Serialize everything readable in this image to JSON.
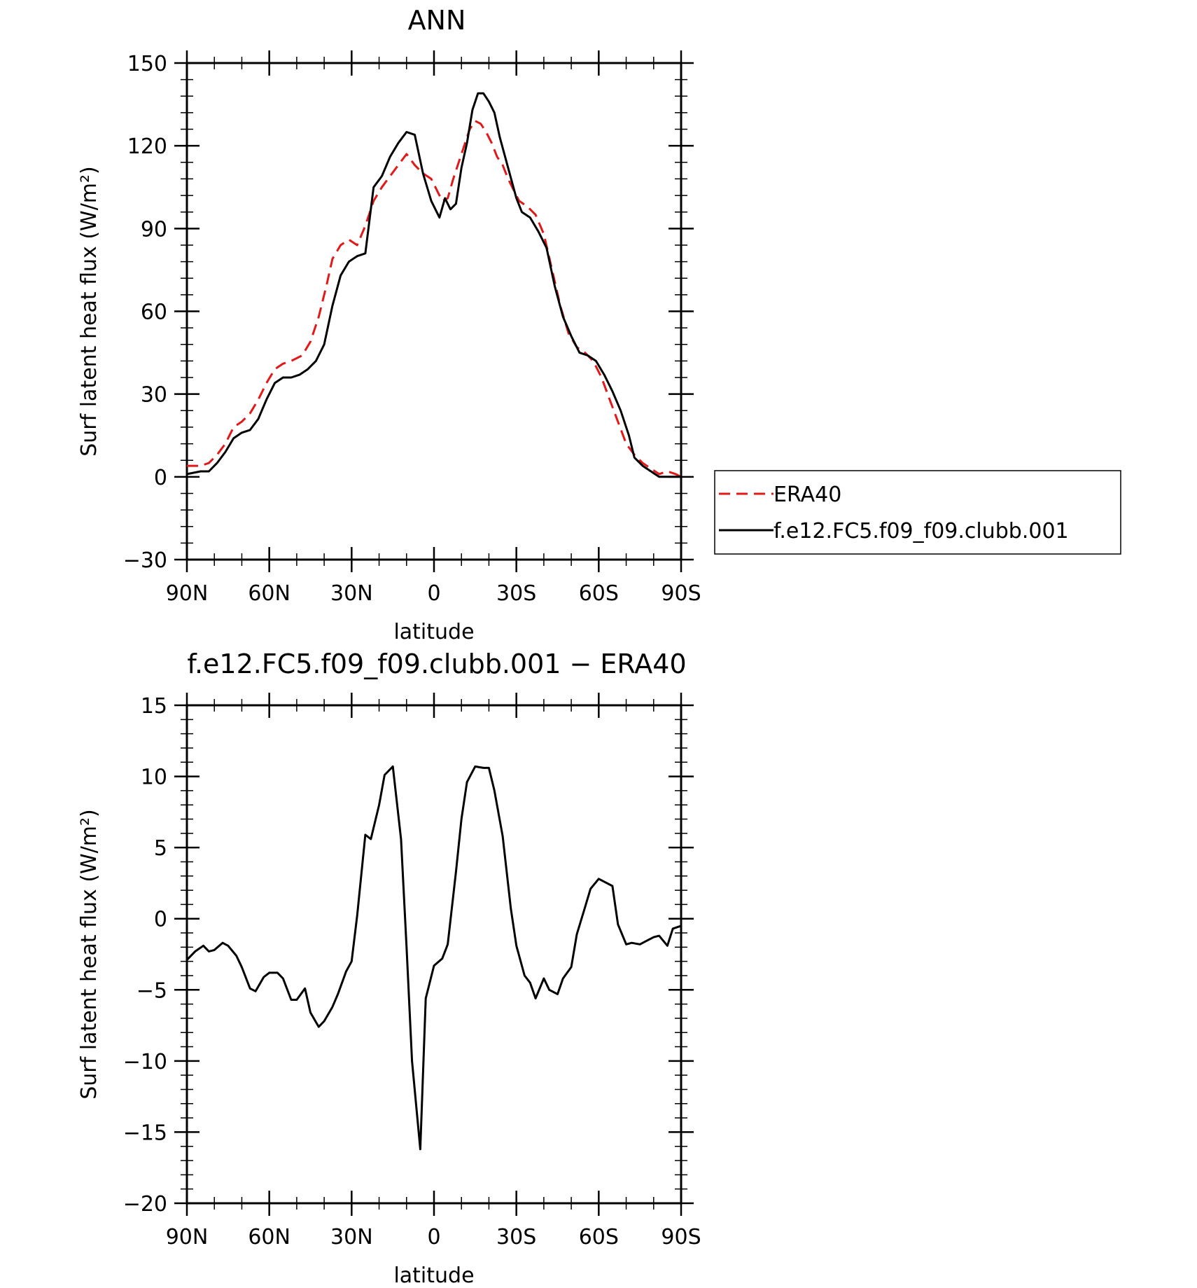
{
  "chart_data": [
    {
      "type": "line",
      "title": "ANN",
      "xlabel": "latitude",
      "ylabel": "Surf latent heat flux (W/m²)",
      "ylim": [
        -30,
        150
      ],
      "yticks": [
        -30,
        0,
        30,
        60,
        90,
        120,
        150
      ],
      "xlim": [
        90,
        -90
      ],
      "xticks": [
        {
          "value": 90,
          "label": "90N"
        },
        {
          "value": 60,
          "label": "60N"
        },
        {
          "value": 30,
          "label": "30N"
        },
        {
          "value": 0,
          "label": "0"
        },
        {
          "value": -30,
          "label": "30S"
        },
        {
          "value": -60,
          "label": "60S"
        },
        {
          "value": -90,
          "label": "90S"
        }
      ],
      "legend_position": "right",
      "series": [
        {
          "name": "ERA40",
          "color": "#e11919",
          "dash": "dashed",
          "points": [
            [
              90,
              4
            ],
            [
              85,
              4
            ],
            [
              82,
              5
            ],
            [
              79,
              8
            ],
            [
              76,
              12
            ],
            [
              73,
              18
            ],
            [
              70,
              20
            ],
            [
              67,
              23
            ],
            [
              64,
              28
            ],
            [
              61,
              34
            ],
            [
              58,
              39
            ],
            [
              55,
              41
            ],
            [
              52,
              42
            ],
            [
              48,
              44
            ],
            [
              45,
              49
            ],
            [
              42,
              58
            ],
            [
              39,
              70
            ],
            [
              37,
              79
            ],
            [
              34,
              84
            ],
            [
              31,
              86
            ],
            [
              28,
              84
            ],
            [
              25,
              91
            ],
            [
              22,
              100
            ],
            [
              19,
              105
            ],
            [
              16,
              109
            ],
            [
              13,
              113
            ],
            [
              10,
              117
            ],
            [
              7,
              113
            ],
            [
              4,
              110
            ],
            [
              1,
              108
            ],
            [
              -1,
              104
            ],
            [
              -3,
              100
            ],
            [
              -5,
              101
            ],
            [
              -7,
              108
            ],
            [
              -9,
              114
            ],
            [
              -11,
              120
            ],
            [
              -13,
              126
            ],
            [
              -15,
              129
            ],
            [
              -17,
              128
            ],
            [
              -19,
              125
            ],
            [
              -21,
              121
            ],
            [
              -23,
              116
            ],
            [
              -25,
              113
            ],
            [
              -27,
              108
            ],
            [
              -29,
              104
            ],
            [
              -31,
              100
            ],
            [
              -34,
              98
            ],
            [
              -37,
              95
            ],
            [
              -40,
              88
            ],
            [
              -43,
              75
            ],
            [
              -46,
              62
            ],
            [
              -49,
              52
            ],
            [
              -52,
              47
            ],
            [
              -55,
              45
            ],
            [
              -58,
              42
            ],
            [
              -61,
              36
            ],
            [
              -64,
              28
            ],
            [
              -67,
              20
            ],
            [
              -70,
              12
            ],
            [
              -73,
              8
            ],
            [
              -76,
              5
            ],
            [
              -79,
              3
            ],
            [
              -82,
              1
            ],
            [
              -85,
              2
            ],
            [
              -88,
              1
            ],
            [
              -90,
              0
            ]
          ]
        },
        {
          "name": "f.e12.FC5.f09_f09.clubb.001",
          "color": "#000000",
          "dash": "solid",
          "points": [
            [
              90,
              1
            ],
            [
              85,
              2
            ],
            [
              82,
              2
            ],
            [
              79,
              5
            ],
            [
              76,
              9
            ],
            [
              73,
              14
            ],
            [
              70,
              16
            ],
            [
              67,
              17
            ],
            [
              64,
              21
            ],
            [
              61,
              28
            ],
            [
              58,
              34
            ],
            [
              55,
              36
            ],
            [
              52,
              36
            ],
            [
              49,
              37
            ],
            [
              46,
              39
            ],
            [
              43,
              42
            ],
            [
              40,
              48
            ],
            [
              37,
              62
            ],
            [
              34,
              73
            ],
            [
              31,
              78
            ],
            [
              28,
              80
            ],
            [
              25,
              81
            ],
            [
              22,
              105
            ],
            [
              19,
              109
            ],
            [
              16,
              116
            ],
            [
              13,
              121
            ],
            [
              10,
              125
            ],
            [
              7,
              124
            ],
            [
              4,
              110
            ],
            [
              1,
              100
            ],
            [
              -2,
              94
            ],
            [
              -4,
              101
            ],
            [
              -6,
              97
            ],
            [
              -8,
              99
            ],
            [
              -10,
              112
            ],
            [
              -12,
              121
            ],
            [
              -14,
              133
            ],
            [
              -16,
              139
            ],
            [
              -18,
              139
            ],
            [
              -20,
              136
            ],
            [
              -22,
              132
            ],
            [
              -24,
              123
            ],
            [
              -27,
              112
            ],
            [
              -30,
              101
            ],
            [
              -32,
              96
            ],
            [
              -35,
              94
            ],
            [
              -38,
              89
            ],
            [
              -41,
              83
            ],
            [
              -44,
              69
            ],
            [
              -47,
              58
            ],
            [
              -50,
              51
            ],
            [
              -53,
              45
            ],
            [
              -56,
              44
            ],
            [
              -59,
              42
            ],
            [
              -62,
              37
            ],
            [
              -65,
              31
            ],
            [
              -68,
              24
            ],
            [
              -71,
              15
            ],
            [
              -73,
              7
            ],
            [
              -76,
              4
            ],
            [
              -79,
              2
            ],
            [
              -82,
              0
            ],
            [
              -85,
              0
            ],
            [
              -90,
              0
            ]
          ]
        }
      ]
    },
    {
      "type": "line",
      "title": "f.e12.FC5.f09_f09.clubb.001 − ERA40",
      "xlabel": "latitude",
      "ylabel": "Surf latent heat flux (W/m²)",
      "ylim": [
        -20,
        15
      ],
      "yticks": [
        -20,
        -15,
        -10,
        -5,
        0,
        5,
        10,
        15
      ],
      "xlim": [
        90,
        -90
      ],
      "xticks": [
        {
          "value": 90,
          "label": "90N"
        },
        {
          "value": 60,
          "label": "60N"
        },
        {
          "value": 30,
          "label": "30N"
        },
        {
          "value": 0,
          "label": "0"
        },
        {
          "value": -30,
          "label": "30S"
        },
        {
          "value": -60,
          "label": "60S"
        },
        {
          "value": -90,
          "label": "90S"
        }
      ],
      "series": [
        {
          "color": "#000000",
          "dash": "solid",
          "points": [
            [
              90,
              -2.9
            ],
            [
              87,
              -2.3
            ],
            [
              84,
              -1.9
            ],
            [
              82,
              -2.3
            ],
            [
              80,
              -2.2
            ],
            [
              77,
              -1.7
            ],
            [
              75,
              -1.9
            ],
            [
              72,
              -2.6
            ],
            [
              70,
              -3.4
            ],
            [
              67,
              -4.9
            ],
            [
              65,
              -5.1
            ],
            [
              62,
              -4.1
            ],
            [
              60,
              -3.8
            ],
            [
              57,
              -3.8
            ],
            [
              55,
              -4.2
            ],
            [
              52,
              -5.7
            ],
            [
              50,
              -5.7
            ],
            [
              47,
              -4.9
            ],
            [
              45,
              -6.6
            ],
            [
              42,
              -7.6
            ],
            [
              40,
              -7.2
            ],
            [
              37,
              -6.2
            ],
            [
              35,
              -5.3
            ],
            [
              32,
              -3.7
            ],
            [
              30,
              -3.0
            ],
            [
              28,
              0.2
            ],
            [
              25,
              5.9
            ],
            [
              23,
              5.6
            ],
            [
              20,
              8.0
            ],
            [
              18,
              10.1
            ],
            [
              15,
              10.7
            ],
            [
              12,
              5.6
            ],
            [
              10,
              -2.0
            ],
            [
              8,
              -10.0
            ],
            [
              5,
              -16.2
            ],
            [
              3,
              -5.6
            ],
            [
              0,
              -3.3
            ],
            [
              -3,
              -2.8
            ],
            [
              -5,
              -1.8
            ],
            [
              -8,
              3.3
            ],
            [
              -10,
              7.0
            ],
            [
              -12,
              9.6
            ],
            [
              -15,
              10.7
            ],
            [
              -18,
              10.6
            ],
            [
              -20,
              10.6
            ],
            [
              -22,
              9.0
            ],
            [
              -25,
              5.8
            ],
            [
              -28,
              0.7
            ],
            [
              -30,
              -1.9
            ],
            [
              -33,
              -4.0
            ],
            [
              -35,
              -4.5
            ],
            [
              -37,
              -5.6
            ],
            [
              -40,
              -4.2
            ],
            [
              -42,
              -5.0
            ],
            [
              -45,
              -5.3
            ],
            [
              -47,
              -4.2
            ],
            [
              -50,
              -3.4
            ],
            [
              -52,
              -1.1
            ],
            [
              -55,
              0.8
            ],
            [
              -57,
              2.1
            ],
            [
              -60,
              2.8
            ],
            [
              -62,
              2.6
            ],
            [
              -65,
              2.3
            ],
            [
              -67,
              -0.4
            ],
            [
              -70,
              -1.8
            ],
            [
              -72,
              -1.7
            ],
            [
              -75,
              -1.8
            ],
            [
              -77,
              -1.6
            ],
            [
              -80,
              -1.3
            ],
            [
              -82,
              -1.2
            ],
            [
              -85,
              -1.9
            ],
            [
              -87,
              -0.7
            ],
            [
              -90,
              -0.5
            ]
          ]
        }
      ]
    }
  ]
}
